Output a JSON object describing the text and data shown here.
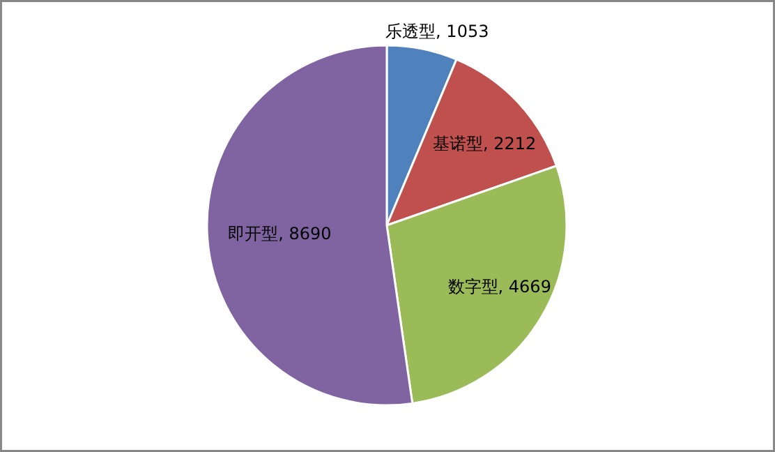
{
  "chart_data": {
    "type": "pie",
    "categories": [
      "乐透型",
      "基诺型",
      "数字型",
      "即开型"
    ],
    "values": [
      1053,
      2212,
      4669,
      8690
    ],
    "value_labels": [
      ", 1053",
      ", 2212",
      ", 4669",
      ", 8690"
    ],
    "colors": [
      "#4f81bd",
      "#c0504d",
      "#9bbb59",
      "#8064a2"
    ]
  }
}
